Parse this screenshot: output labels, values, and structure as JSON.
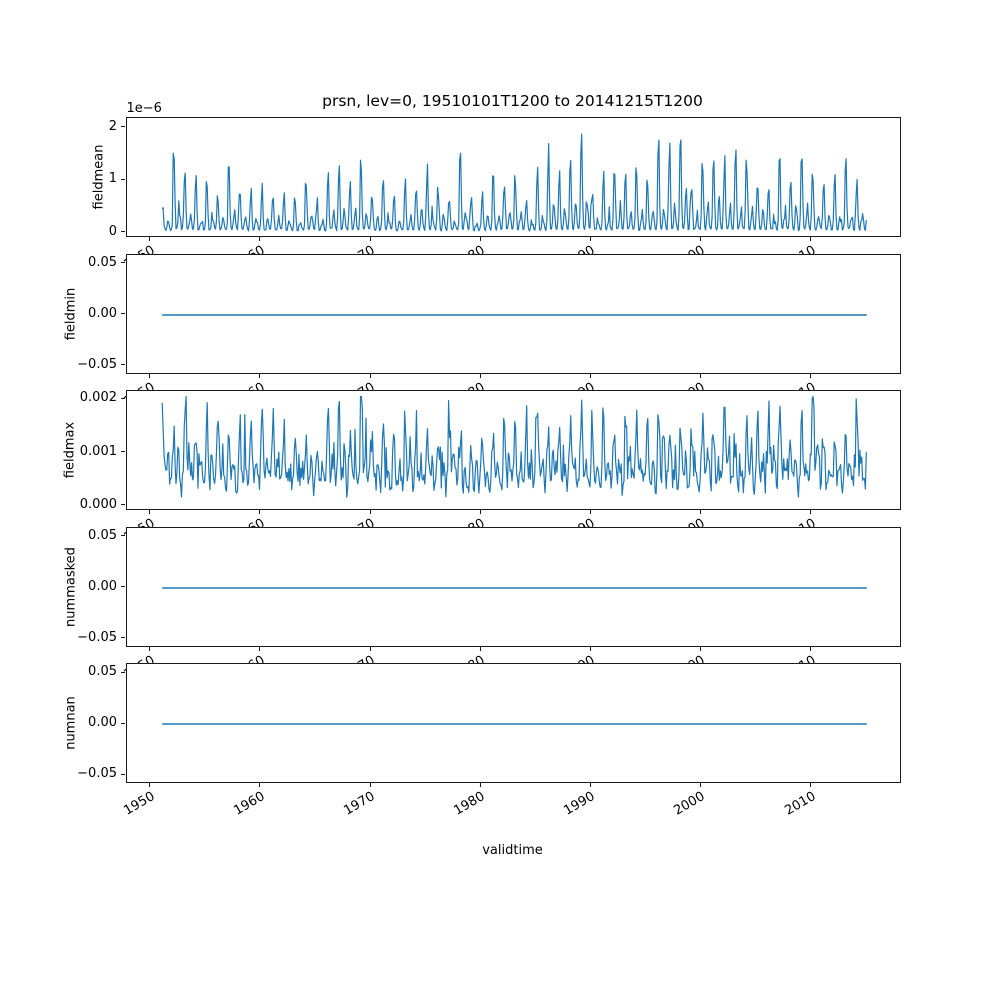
{
  "figure": {
    "title": "prsn, lev=0, 19510101T1200 to 20141215T1200",
    "background": "#ffffff",
    "line_color": "#1f77b4"
  },
  "chart_config": {
    "xlabel": "validtime",
    "x_start": 1951.0,
    "x_end": 2014.9583,
    "xlim": [
      1947.8021,
      2018.1562
    ],
    "xticks": [
      1950,
      1960,
      1970,
      1980,
      1990,
      2000,
      2010
    ],
    "xtick_labels": [
      "1950",
      "1960",
      "1970",
      "1980",
      "1990",
      "2000",
      "2010"
    ],
    "xtick_rotation_deg": 30,
    "grid": false,
    "legend": false,
    "subplot_count": 5
  },
  "chart_data": [
    {
      "type": "line",
      "name": "fieldmean",
      "ylabel": "fieldmean",
      "offset_label": "1e−6",
      "value_scale": "1e-6",
      "yticks": [
        0,
        1,
        2
      ],
      "ytick_labels": [
        "0",
        "1",
        "2"
      ],
      "ylim": [
        -0.103,
        2.183
      ],
      "description": "Monthly mean snowfall flux 1951-2014; annual spike train, peaks mostly 0.5e-6 to 1.6e-6, rare peaks near 2.0e-6 (~1966), troughs near 0",
      "generator": {
        "kind": "seasonal",
        "seed": 7,
        "amp_min": 0.5,
        "amp_max": 1.55,
        "rare_prob": 0.02,
        "rare_amp": 2.0,
        "peak_pos": 0.05,
        "sigma": 0.075,
        "second_amp": 0.3,
        "second_pos": 0.55,
        "sigma2": 0.09,
        "base": 0.02,
        "noise": 0.04,
        "spike_prob": 0,
        "spike_amp": 0,
        "vmax": 2.05
      }
    },
    {
      "type": "line",
      "name": "fieldmin",
      "ylabel": "fieldmin",
      "yticks": [
        -0.05,
        0.0,
        0.05
      ],
      "ytick_labels": [
        "−0.05",
        "0.00",
        "0.05"
      ],
      "ylim": [
        -0.0588,
        0.0588
      ],
      "description": "Constant zero line for entire period 1951-2014",
      "generator": {
        "kind": "flat",
        "value": 0
      }
    },
    {
      "type": "line",
      "name": "fieldmax",
      "ylabel": "fieldmax",
      "yticks": [
        0.0,
        0.001,
        0.002
      ],
      "ytick_labels": [
        "0.000",
        "0.001",
        "0.002"
      ],
      "ylim": [
        -0.0001025,
        0.0021525
      ],
      "description": "Monthly max snowfall flux 1951-2014; dense noisy spikes between ~0.0001 and 0.0018, rare peaks near 0.002 (~1968, ~2007)",
      "generator": {
        "kind": "seasonal",
        "seed": 13,
        "amp_min": 0.0009,
        "amp_max": 0.0016,
        "rare_prob": 0.03,
        "rare_amp": 0.00195,
        "peak_pos": 0.05,
        "sigma": 0.11,
        "second_amp": 0.45,
        "second_pos": 0.5,
        "sigma2": 0.13,
        "base": 6e-05,
        "noise": 0.00035,
        "spike_prob": 0.12,
        "spike_amp": 0.0007,
        "vmax": 0.00205
      }
    },
    {
      "type": "line",
      "name": "nummasked",
      "ylabel": "nummasked",
      "yticks": [
        -0.05,
        0.0,
        0.05
      ],
      "ytick_labels": [
        "−0.05",
        "0.00",
        "0.05"
      ],
      "ylim": [
        -0.0588,
        0.0588
      ],
      "description": "Constant zero line for entire period 1951-2014",
      "generator": {
        "kind": "flat",
        "value": 0
      }
    },
    {
      "type": "line",
      "name": "numnan",
      "ylabel": "numnan",
      "yticks": [
        -0.05,
        0.0,
        0.05
      ],
      "ytick_labels": [
        "−0.05",
        "0.00",
        "0.05"
      ],
      "ylim": [
        -0.0588,
        0.0588
      ],
      "description": "Constant zero line for entire period 1951-2014",
      "generator": {
        "kind": "flat",
        "value": 0
      }
    }
  ]
}
